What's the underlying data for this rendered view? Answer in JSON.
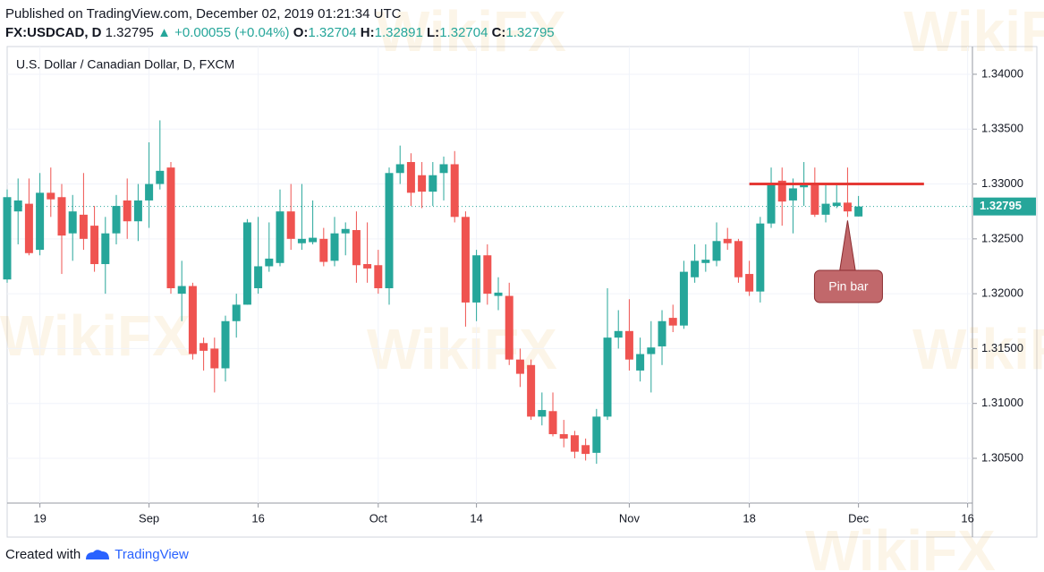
{
  "header": {
    "published": "Published on TradingView.com, December 02, 2019 01:21:34 UTC",
    "symbol": "FX:USDCAD, D",
    "price": 1.32795,
    "change": "▲ +0.00055 (+0.04%)",
    "ohlc": [
      {
        "label": "O:",
        "value": 1.32704
      },
      {
        "label": "H:",
        "value": 1.32891
      },
      {
        "label": "L:",
        "value": 1.32704
      },
      {
        "label": "C:",
        "value": 1.32795
      }
    ]
  },
  "footer": {
    "created": "Created with",
    "brand": "TradingView"
  },
  "watermark": "WikiFX",
  "chart_data": {
    "type": "candlestick",
    "title": "U.S. Dollar / Canadian Dollar, D, FXCM",
    "up_color": "#26a69a",
    "down_color": "#ef5350",
    "x": [
      0,
      1,
      2,
      3,
      4,
      5,
      6,
      7,
      8,
      9,
      10,
      11,
      12,
      13,
      14,
      15,
      16,
      17,
      18,
      19,
      20,
      21,
      22,
      23,
      24,
      25,
      26,
      27,
      28,
      29,
      30,
      31,
      32,
      33,
      34,
      35,
      36,
      37,
      38,
      39,
      40,
      41,
      42,
      43,
      44,
      45,
      46,
      47,
      48,
      49,
      50,
      51,
      52,
      53,
      54,
      55,
      56,
      57,
      58,
      59,
      60,
      61,
      62,
      63,
      64,
      65,
      66,
      67,
      68,
      69,
      70,
      71,
      72,
      73,
      74,
      75,
      76,
      77,
      78
    ],
    "open": [
      1.3213,
      1.3275,
      1.3282,
      1.324,
      1.3292,
      1.3288,
      1.3255,
      1.3272,
      1.3262,
      1.3227,
      1.3255,
      1.3285,
      1.3266,
      1.3285,
      1.33,
      1.3315,
      1.32,
      1.3207,
      1.3155,
      1.315,
      1.3132,
      1.3175,
      1.319,
      1.3205,
      1.3225,
      1.3228,
      1.3275,
      1.3246,
      1.3247,
      1.325,
      1.323,
      1.3255,
      1.3258,
      1.3227,
      1.3226,
      1.3205,
      1.331,
      1.332,
      1.3308,
      1.3293,
      1.331,
      1.3318,
      1.327,
      1.3192,
      1.3235,
      1.3198,
      1.3198,
      1.314,
      1.3135,
      1.3088,
      1.3093,
      1.3072,
      1.3071,
      1.3062,
      1.3055,
      1.3088,
      1.316,
      1.3166,
      1.313,
      1.3145,
      1.3152,
      1.3178,
      1.3171,
      1.3215,
      1.3228,
      1.323,
      1.325,
      1.3248,
      1.3218,
      1.3202,
      1.3264,
      1.3303,
      1.3285,
      1.3297,
      1.33,
      1.3272,
      1.328,
      1.3283,
      1.32704
    ],
    "high": [
      1.3295,
      1.3305,
      1.3305,
      1.331,
      1.3315,
      1.33,
      1.329,
      1.331,
      1.328,
      1.327,
      1.329,
      1.3305,
      1.33,
      1.3338,
      1.3358,
      1.332,
      1.323,
      1.321,
      1.316,
      1.316,
      1.318,
      1.32,
      1.3268,
      1.327,
      1.3265,
      1.3295,
      1.33,
      1.33,
      1.3285,
      1.326,
      1.327,
      1.3265,
      1.3275,
      1.3265,
      1.324,
      1.3315,
      1.3335,
      1.3328,
      1.332,
      1.332,
      1.3325,
      1.333,
      1.3275,
      1.324,
      1.3245,
      1.3215,
      1.321,
      1.315,
      1.314,
      1.311,
      1.311,
      1.3085,
      1.3075,
      1.3068,
      1.3095,
      1.3205,
      1.3185,
      1.3195,
      1.316,
      1.3175,
      1.3185,
      1.319,
      1.323,
      1.3245,
      1.3245,
      1.3265,
      1.326,
      1.325,
      1.323,
      1.327,
      1.3315,
      1.3315,
      1.3305,
      1.332,
      1.3315,
      1.33,
      1.33,
      1.3315,
      1.32891
    ],
    "low": [
      1.321,
      1.3245,
      1.3235,
      1.3235,
      1.327,
      1.3218,
      1.323,
      1.324,
      1.322,
      1.32,
      1.3245,
      1.325,
      1.3248,
      1.326,
      1.3295,
      1.32,
      1.3175,
      1.314,
      1.313,
      1.311,
      1.312,
      1.316,
      1.319,
      1.32,
      1.322,
      1.3225,
      1.324,
      1.324,
      1.3245,
      1.3225,
      1.3225,
      1.3235,
      1.321,
      1.321,
      1.32,
      1.319,
      1.33,
      1.328,
      1.3278,
      1.328,
      1.3285,
      1.3265,
      1.317,
      1.3175,
      1.319,
      1.3185,
      1.3135,
      1.3115,
      1.3085,
      1.308,
      1.307,
      1.306,
      1.305,
      1.3048,
      1.3045,
      1.3085,
      1.315,
      1.313,
      1.312,
      1.311,
      1.3135,
      1.3165,
      1.3168,
      1.321,
      1.322,
      1.3225,
      1.324,
      1.321,
      1.3198,
      1.3192,
      1.326,
      1.3262,
      1.3255,
      1.328,
      1.327,
      1.3265,
      1.3278,
      1.327,
      1.32704
    ],
    "close": [
      1.3288,
      1.3285,
      1.3237,
      1.3292,
      1.3286,
      1.3253,
      1.3275,
      1.325,
      1.3227,
      1.3255,
      1.328,
      1.3266,
      1.3285,
      1.33,
      1.3312,
      1.3205,
      1.3207,
      1.3145,
      1.3148,
      1.3132,
      1.3175,
      1.319,
      1.3265,
      1.3225,
      1.3232,
      1.3275,
      1.325,
      1.325,
      1.3251,
      1.3229,
      1.3255,
      1.3259,
      1.3226,
      1.3223,
      1.3205,
      1.331,
      1.3318,
      1.3292,
      1.3293,
      1.3308,
      1.3318,
      1.327,
      1.3192,
      1.3235,
      1.32,
      1.3201,
      1.314,
      1.3127,
      1.3088,
      1.3094,
      1.3072,
      1.3068,
      1.3056,
      1.3054,
      1.3088,
      1.316,
      1.3166,
      1.314,
      1.3145,
      1.3151,
      1.3175,
      1.3171,
      1.322,
      1.323,
      1.3231,
      1.3248,
      1.3246,
      1.3215,
      1.3202,
      1.3264,
      1.33,
      1.3284,
      1.3296,
      1.3301,
      1.3272,
      1.3282,
      1.3283,
      1.3275,
      1.32795
    ],
    "xlim": [
      0,
      88.44
    ],
    "xticks": [
      {
        "value": 3,
        "label": "19"
      },
      {
        "value": 13,
        "label": "Sep"
      },
      {
        "value": 23,
        "label": "16"
      },
      {
        "value": 34,
        "label": "Oct"
      },
      {
        "value": 43,
        "label": "14"
      },
      {
        "value": 57,
        "label": "Nov"
      },
      {
        "value": 68,
        "label": "18"
      },
      {
        "value": 78,
        "label": "Dec"
      },
      {
        "value": 88,
        "label": "16"
      }
    ],
    "ylim": [
      1.30092,
      1.34171
    ],
    "yticks": [
      {
        "value": 1.305,
        "label": "1.30500"
      },
      {
        "value": 1.31,
        "label": "1.31000"
      },
      {
        "value": 1.315,
        "label": "1.31500"
      },
      {
        "value": 1.32,
        "label": "1.32000"
      },
      {
        "value": 1.325,
        "label": "1.32500"
      },
      {
        "value": 1.33,
        "label": "1.33000"
      },
      {
        "value": 1.335,
        "label": "1.33500"
      },
      {
        "value": 1.34,
        "label": "1.34000"
      }
    ],
    "grid": true,
    "last": 1.32795,
    "level": {
      "value": 1.33,
      "x": [
        68,
        84
      ],
      "color": "#e53935"
    },
    "annotation": {
      "text": "Pin bar",
      "x": 77,
      "color": "#c1686b"
    }
  }
}
